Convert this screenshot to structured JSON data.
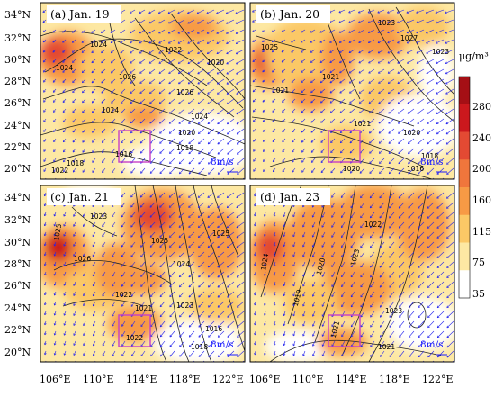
{
  "panels": [
    {
      "title": "(a)  Jan. 19",
      "isobars": [
        "1024",
        "1024",
        "1026",
        "1022",
        "1020",
        "1024",
        "1026",
        "1024",
        "1020",
        "1018",
        "1016",
        "1018",
        "1022"
      ],
      "scale_label": "8m/s"
    },
    {
      "title": "(b)  Jan. 20",
      "isobars": [
        "1025",
        "1021",
        "1023",
        "1021",
        "1021",
        "1027",
        "1020",
        "1016",
        "1018",
        "1020",
        "1023"
      ],
      "scale_label": "8m/s"
    },
    {
      "title": "(c)  Jan. 21",
      "isobars": [
        "1025",
        "1023",
        "1026",
        "1025",
        "1024",
        "1022",
        "1021",
        "1023",
        "1025",
        "1018",
        "1016",
        "1022"
      ],
      "scale_label": "8m/s"
    },
    {
      "title": "(d)  Jan. 23",
      "isobars": [
        "1024",
        "1019",
        "1020",
        "1023",
        "1021",
        "1021",
        "1023",
        "1022"
      ],
      "scale_label": "8m/s"
    }
  ],
  "lat_labels": [
    "34°N",
    "32°N",
    "30°N",
    "28°N",
    "26°N",
    "24°N",
    "22°N",
    "20°N"
  ],
  "lon_labels": [
    "106°E",
    "110°E",
    "114°E",
    "118°E",
    "122°E"
  ],
  "colorbar": {
    "unit": "μg/m³",
    "ticks": [
      "280",
      "240",
      "200",
      "160",
      "115",
      "75",
      "35"
    ],
    "colors": [
      "#a50f15",
      "#cb181d",
      "#e34a33",
      "#f0763c",
      "#f79a45",
      "#fbc866",
      "#fde8a3",
      "#ffffff"
    ]
  },
  "colors": {
    "wind": "#2323ee",
    "box": "#c640c6",
    "isobar": "#222222"
  }
}
